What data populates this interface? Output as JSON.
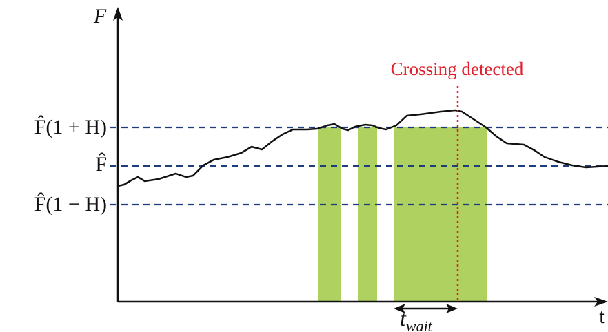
{
  "axes": {
    "y_label": "F",
    "x_label": "t"
  },
  "levels": {
    "upper": "F̂(1 + H)",
    "middle": "F̂",
    "lower": "F̂(1 − H)"
  },
  "annotation": "Crossing detected",
  "wait_label": {
    "base": "t",
    "subscript": "wait"
  }
}
